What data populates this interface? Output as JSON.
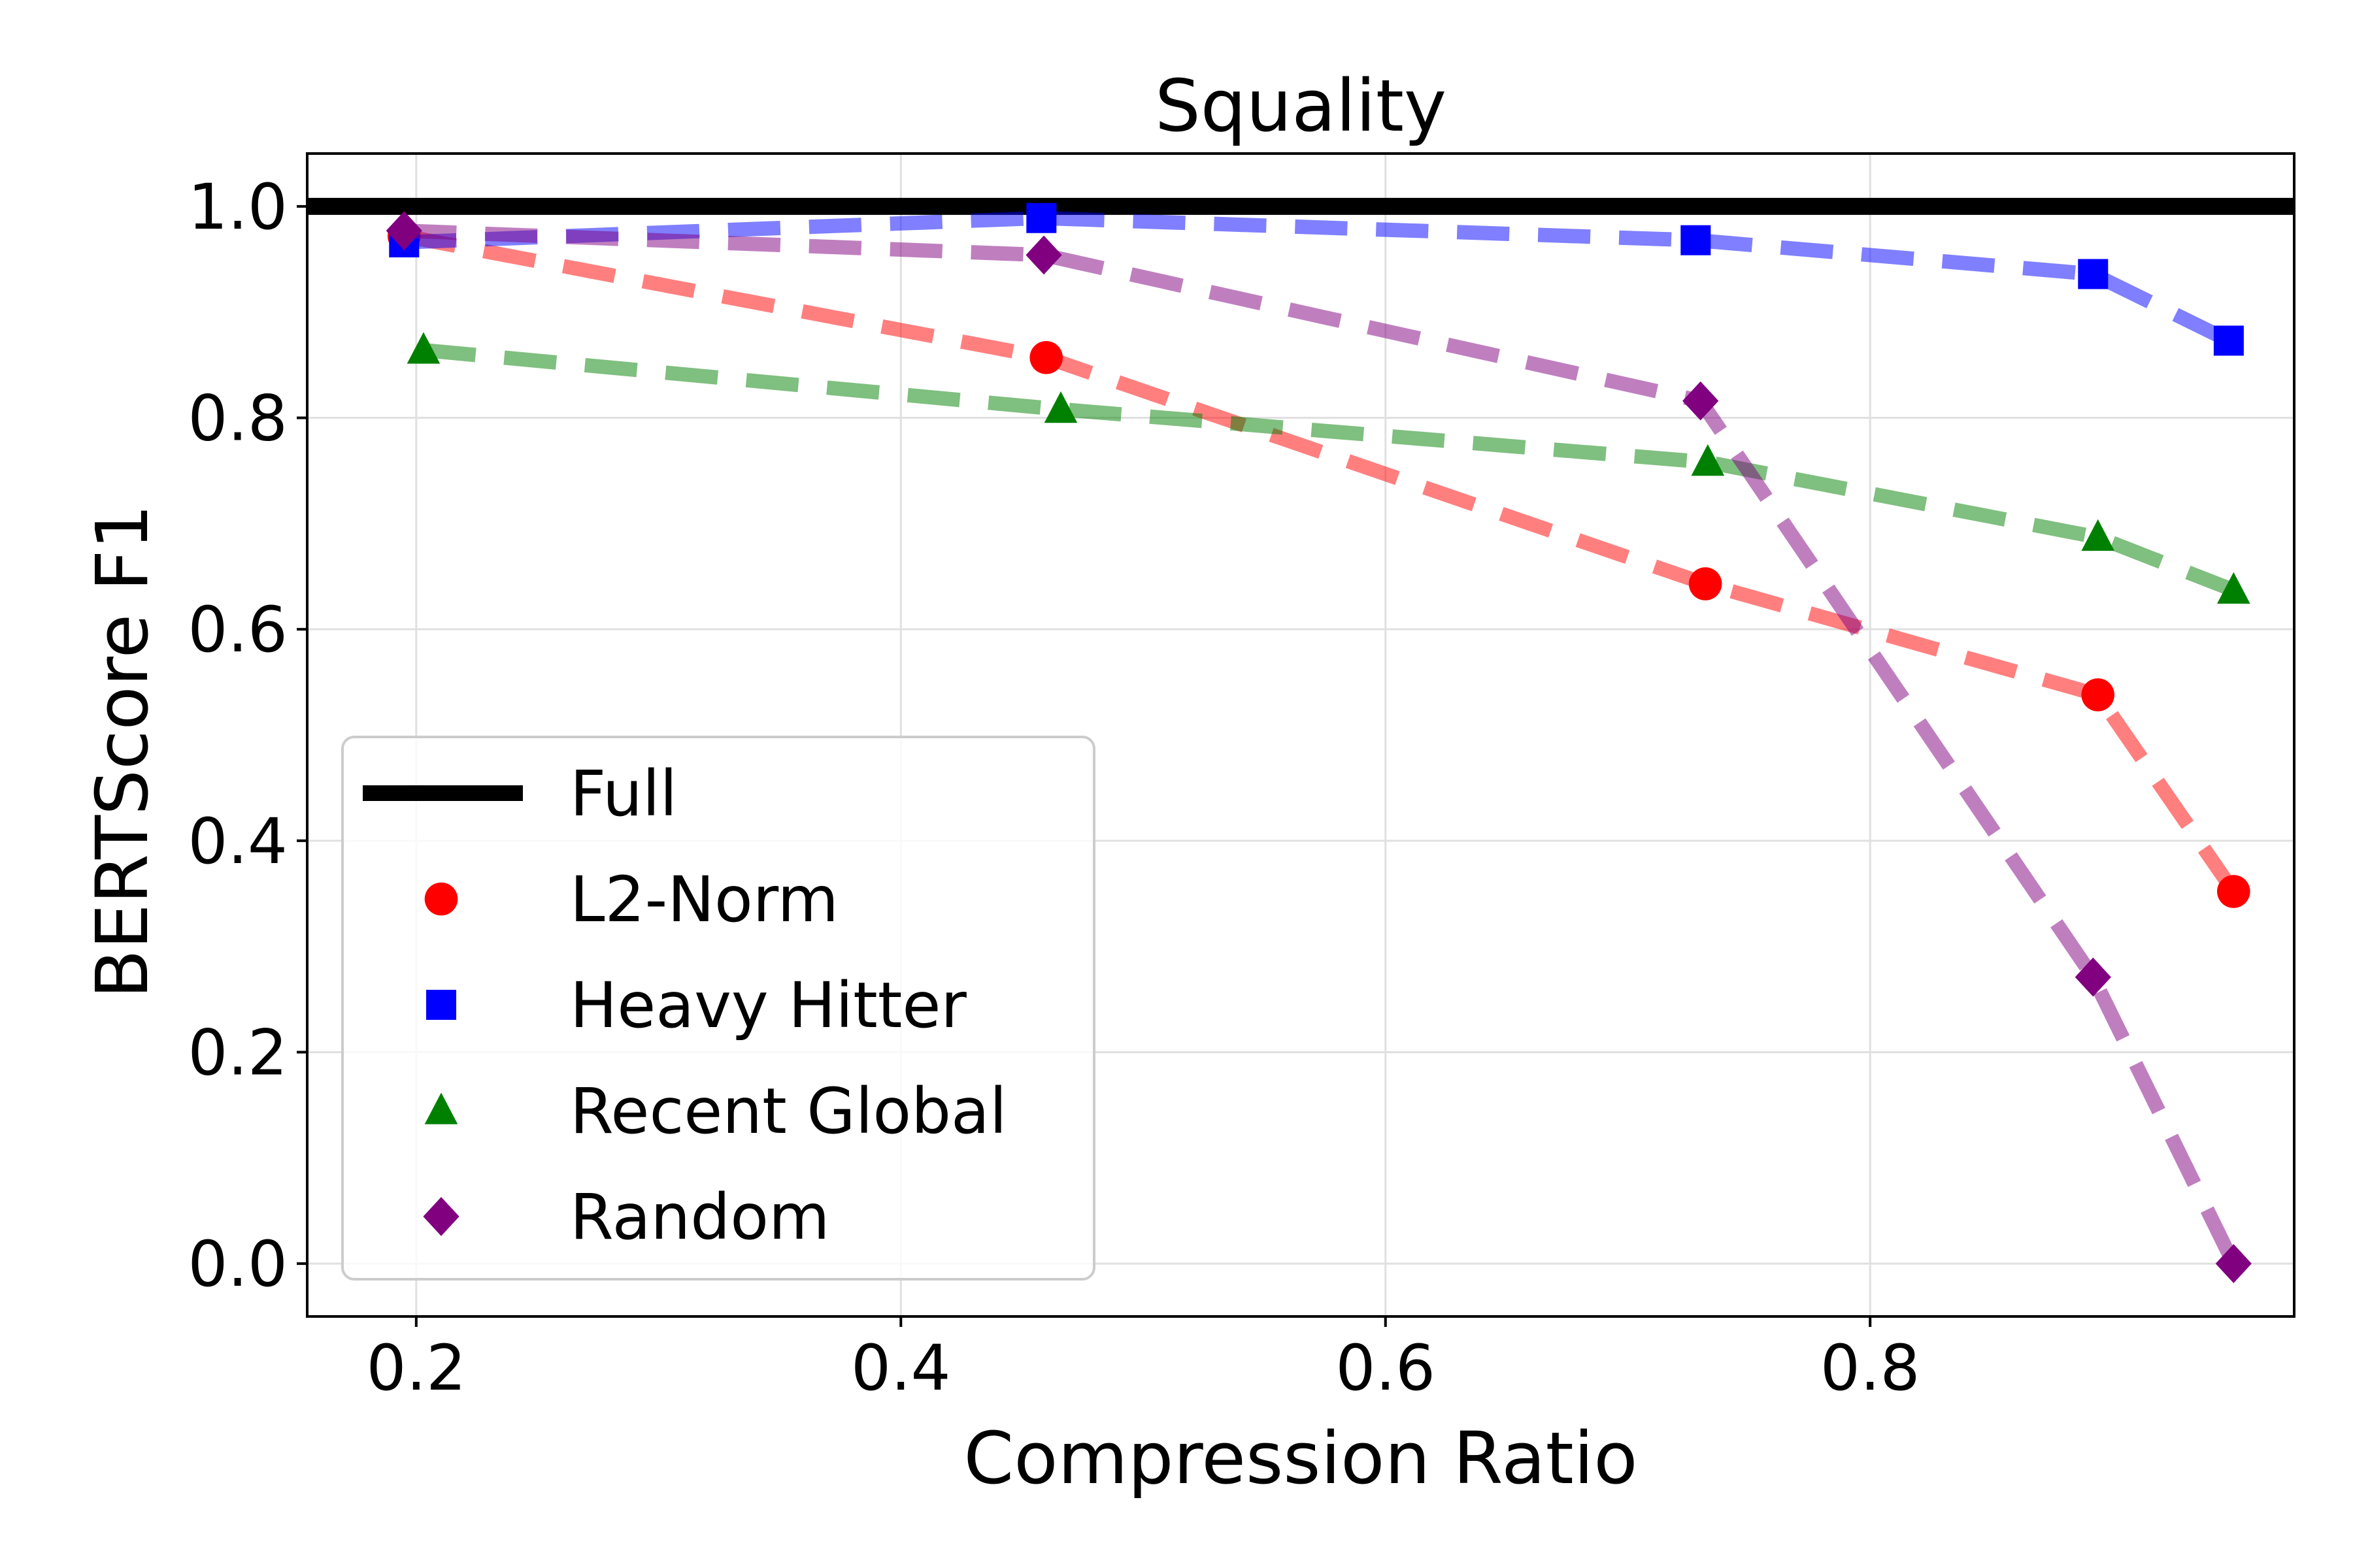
{
  "chart_data": {
    "type": "line",
    "title": "Squality",
    "xlabel": "Compression Ratio",
    "ylabel": "BERTScore F1",
    "xlim": [
      0.155,
      0.975
    ],
    "ylim": [
      -0.05,
      1.05
    ],
    "xticks": [
      0.2,
      0.4,
      0.6,
      0.8
    ],
    "yticks": [
      0.0,
      0.2,
      0.4,
      0.6,
      0.8,
      1.0
    ],
    "xtick_labels": [
      "0.2",
      "0.4",
      "0.6",
      "0.8"
    ],
    "ytick_labels": [
      "0.0",
      "0.2",
      "0.4",
      "0.6",
      "0.8",
      "1.0"
    ],
    "grid": true,
    "legend_position": "lower-left",
    "reference": {
      "name": "Full",
      "value": 1.0,
      "color": "#000000"
    },
    "series": [
      {
        "name": "L2-Norm",
        "color": "#ff0000",
        "marker": "circle",
        "x": [
          0.195,
          0.46,
          0.732,
          0.894,
          0.95
        ],
        "y": [
          0.972,
          0.857,
          0.643,
          0.538,
          0.352
        ]
      },
      {
        "name": "Heavy Hitter",
        "color": "#0000ff",
        "marker": "square",
        "x": [
          0.195,
          0.458,
          0.728,
          0.892,
          0.948
        ],
        "y": [
          0.966,
          0.989,
          0.968,
          0.936,
          0.873
        ]
      },
      {
        "name": "Recent Global",
        "color": "#008000",
        "marker": "triangle",
        "x": [
          0.203,
          0.466,
          0.733,
          0.894,
          0.95
        ],
        "y": [
          0.864,
          0.808,
          0.758,
          0.687,
          0.637
        ]
      },
      {
        "name": "Random",
        "color": "#800080",
        "marker": "diamond",
        "x": [
          0.195,
          0.459,
          0.73,
          0.892,
          0.95
        ],
        "y": [
          0.977,
          0.954,
          0.816,
          0.271,
          0.0
        ]
      }
    ]
  }
}
